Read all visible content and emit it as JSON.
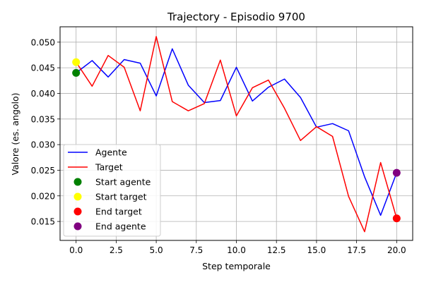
{
  "chart_data": {
    "type": "line",
    "title": "Trajectory - Episodio 9700",
    "xlabel": "Step temporale",
    "ylabel": "Valore (es. angolo)",
    "xlim": [
      -1,
      21
    ],
    "ylim": [
      0.0113,
      0.053
    ],
    "xticks": [
      0,
      2.5,
      5,
      7.5,
      10,
      12.5,
      15,
      17.5,
      20
    ],
    "xtick_labels": [
      "0.0",
      "2.5",
      "5.0",
      "7.5",
      "10.0",
      "12.5",
      "15.0",
      "17.5",
      "20.0"
    ],
    "yticks": [
      0.015,
      0.02,
      0.025,
      0.03,
      0.035,
      0.04,
      0.045,
      0.05
    ],
    "ytick_labels": [
      "0.015",
      "0.020",
      "0.025",
      "0.030",
      "0.035",
      "0.040",
      "0.045",
      "0.050"
    ],
    "grid": true,
    "legend_position": "lower-left",
    "series": [
      {
        "name": "Agente",
        "color": "#0000ff",
        "x": [
          0,
          1,
          2,
          3,
          4,
          5,
          6,
          7,
          8,
          9,
          10,
          11,
          12,
          13,
          14,
          15,
          16,
          17,
          18,
          19,
          20
        ],
        "values": [
          0.044,
          0.0464,
          0.0432,
          0.0466,
          0.0459,
          0.0395,
          0.0487,
          0.0416,
          0.0382,
          0.0386,
          0.0451,
          0.0385,
          0.0412,
          0.0428,
          0.0392,
          0.0334,
          0.0341,
          0.0327,
          0.0237,
          0.0162,
          0.0245
        ]
      },
      {
        "name": "Target",
        "color": "#ff0000",
        "x": [
          0,
          1,
          2,
          3,
          4,
          5,
          6,
          7,
          8,
          9,
          10,
          11,
          12,
          13,
          14,
          15,
          16,
          17,
          18,
          19,
          20
        ],
        "values": [
          0.0461,
          0.0414,
          0.0474,
          0.0451,
          0.0366,
          0.0511,
          0.0384,
          0.0366,
          0.038,
          0.0465,
          0.0356,
          0.0411,
          0.0426,
          0.0371,
          0.0308,
          0.0335,
          0.0316,
          0.0199,
          0.013,
          0.0265,
          0.0156
        ]
      }
    ],
    "markers": [
      {
        "name": "Start agente",
        "color": "#008000",
        "x": 0,
        "y": 0.044
      },
      {
        "name": "Start target",
        "color": "#ffff00",
        "x": 0,
        "y": 0.0461
      },
      {
        "name": "End target",
        "color": "#ff0000",
        "x": 20,
        "y": 0.0156
      },
      {
        "name": "End agente",
        "color": "#800080",
        "x": 20,
        "y": 0.0245
      }
    ]
  }
}
